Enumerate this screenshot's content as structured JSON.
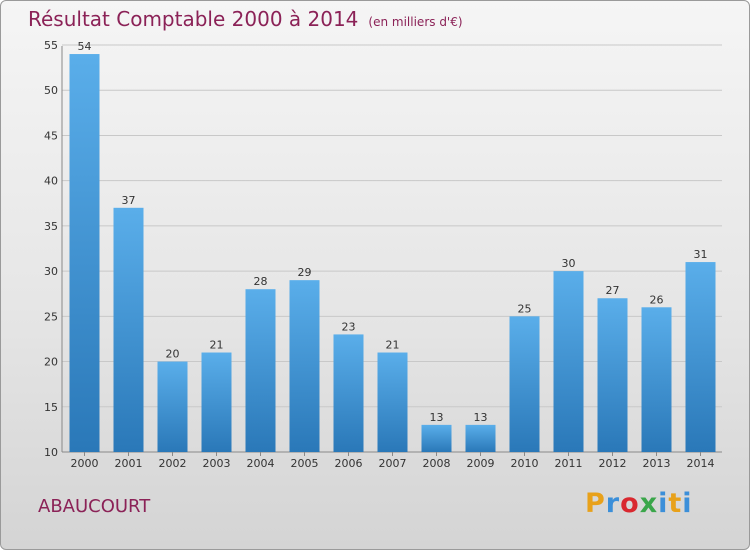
{
  "title": "Résultat Comptable 2000 à 2014",
  "subtitle": "(en milliers d'€)",
  "place": "ABAUCOURT",
  "logo": "Proxiti",
  "colors": {
    "bar_light": "#5aaeea",
    "bar_dark": "#2a78b8",
    "title": "#8b2257",
    "grid": "#c8c8c8"
  },
  "chart_data": {
    "type": "bar",
    "categories": [
      "2000",
      "2001",
      "2002",
      "2003",
      "2004",
      "2005",
      "2006",
      "2007",
      "2008",
      "2009",
      "2010",
      "2011",
      "2012",
      "2013",
      "2014"
    ],
    "values": [
      54,
      37,
      20,
      21,
      28,
      29,
      23,
      21,
      13,
      13,
      25,
      30,
      27,
      26,
      31
    ],
    "ylim": [
      10,
      55
    ],
    "yticks": [
      10,
      15,
      20,
      25,
      30,
      35,
      40,
      45,
      50,
      55
    ],
    "grid": true,
    "xlabel": "",
    "ylabel": ""
  }
}
